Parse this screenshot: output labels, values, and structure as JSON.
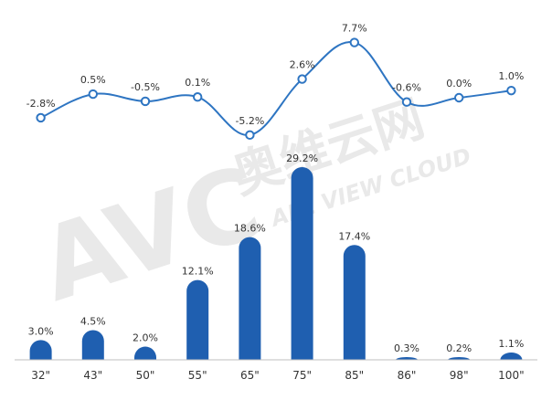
{
  "watermark": {
    "logo": "AVC",
    "cn": "奥维云网",
    "en": "ALL VIEW CLOUD"
  },
  "chart_data": {
    "type": "bar+line",
    "categories": [
      "32\"",
      "43\"",
      "50\"",
      "55\"",
      "65\"",
      "75\"",
      "85\"",
      "86\"",
      "98\"",
      "100\""
    ],
    "series": [
      {
        "type": "bar",
        "values": [
          3.0,
          4.5,
          2.0,
          12.1,
          18.6,
          29.2,
          17.4,
          0.3,
          0.2,
          1.1
        ],
        "labels": [
          "3.0%",
          "4.5%",
          "2.0%",
          "12.1%",
          "18.6%",
          "29.2%",
          "17.4%",
          "0.3%",
          "0.2%",
          "1.1%"
        ],
        "color": "#1f5fb0"
      },
      {
        "type": "line",
        "values": [
          -2.8,
          0.5,
          -0.5,
          0.1,
          -5.2,
          2.6,
          7.7,
          -0.6,
          0.0,
          1.0
        ],
        "labels": [
          "-2.8%",
          "0.5%",
          "-0.5%",
          "0.1%",
          "-5.2%",
          "2.6%",
          "7.7%",
          "-0.6%",
          "0.0%",
          "1.0%"
        ],
        "color": "#2e75c2"
      }
    ],
    "axis_color": "#bfbfbf",
    "grid": false,
    "legend": "none"
  }
}
